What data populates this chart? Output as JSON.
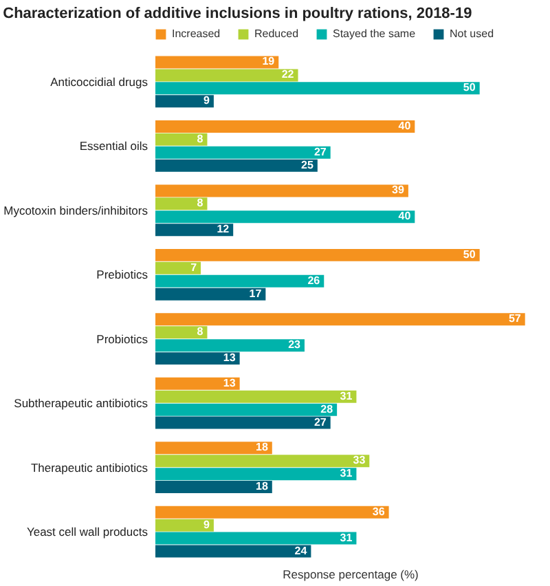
{
  "chart_data": {
    "type": "bar",
    "orientation": "horizontal",
    "title": "Characterization of additive inclusions in poultry rations, 2018-19",
    "xlabel": "Response percentage (%)",
    "categories": [
      "Anticoccidial drugs",
      "Essential oils",
      "Mycotoxin binders/inhibitors",
      "Prebiotics",
      "Probiotics",
      "Subtherapeutic antibiotics",
      "Therapeutic antibiotics",
      "Yeast cell wall products"
    ],
    "series": [
      {
        "name": "Increased",
        "color": "#f5921e",
        "values": [
          19,
          40,
          39,
          50,
          57,
          13,
          18,
          36
        ]
      },
      {
        "name": "Reduced",
        "color": "#b1d236",
        "values": [
          22,
          8,
          8,
          7,
          8,
          31,
          33,
          9
        ]
      },
      {
        "name": "Stayed the same",
        "color": "#00b3ab",
        "values": [
          50,
          27,
          40,
          26,
          23,
          28,
          31,
          31
        ]
      },
      {
        "name": "Not used",
        "color": "#00607a",
        "values": [
          9,
          25,
          12,
          17,
          13,
          27,
          18,
          24
        ]
      }
    ],
    "data_labels": true,
    "legend": "top",
    "tick_labels": "y"
  }
}
